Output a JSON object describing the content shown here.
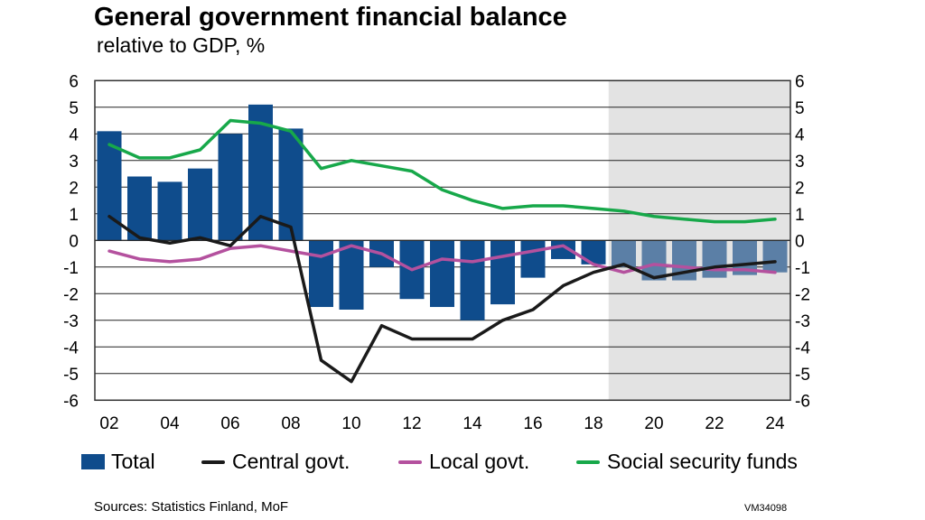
{
  "chart_data": {
    "type": "bar+line",
    "title": "General government financial balance",
    "subtitle": "relative to GDP, %",
    "years": [
      2002,
      2003,
      2004,
      2005,
      2006,
      2007,
      2008,
      2009,
      2010,
      2011,
      2012,
      2013,
      2014,
      2015,
      2016,
      2017,
      2018,
      2019,
      2020,
      2021,
      2022,
      2023,
      2024
    ],
    "x_tick_labels": [
      "02",
      "04",
      "06",
      "08",
      "10",
      "12",
      "14",
      "16",
      "18",
      "20",
      "22",
      "24"
    ],
    "y_ticks": [
      6,
      5,
      4,
      3,
      2,
      1,
      0,
      -1,
      -2,
      -3,
      -4,
      -5,
      -6
    ],
    "ylim": [
      -6,
      6
    ],
    "grid": true,
    "forecast_from": 2019,
    "series": [
      {
        "name": "Total",
        "kind": "bar",
        "color": "#0f4c8c",
        "forecast_color": "#5b7fa6",
        "values": [
          4.1,
          2.4,
          2.2,
          2.7,
          4.0,
          5.1,
          4.2,
          -2.5,
          -2.6,
          -1.0,
          -2.2,
          -2.5,
          -3.0,
          -2.4,
          -1.4,
          -0.7,
          -0.9,
          -1.0,
          -1.5,
          -1.5,
          -1.4,
          -1.3,
          -1.2
        ]
      },
      {
        "name": "Central govt.",
        "kind": "line",
        "color": "#1a1a1a",
        "values": [
          0.9,
          0.1,
          -0.1,
          0.1,
          -0.2,
          0.9,
          0.5,
          -4.5,
          -5.3,
          -3.2,
          -3.7,
          -3.7,
          -3.7,
          -3.0,
          -2.6,
          -1.7,
          -1.2,
          -0.9,
          -1.4,
          -1.2,
          -1.0,
          -0.9,
          -0.8
        ]
      },
      {
        "name": "Local govt.",
        "kind": "line",
        "color": "#b4519e",
        "values": [
          -0.4,
          -0.7,
          -0.8,
          -0.7,
          -0.3,
          -0.2,
          -0.4,
          -0.6,
          -0.2,
          -0.5,
          -1.1,
          -0.7,
          -0.8,
          -0.6,
          -0.4,
          -0.2,
          -0.9,
          -1.2,
          -0.9,
          -1.0,
          -1.1,
          -1.1,
          -1.2
        ]
      },
      {
        "name": "Social security funds",
        "kind": "line",
        "color": "#17a84a",
        "values": [
          3.6,
          3.1,
          3.1,
          3.4,
          4.5,
          4.4,
          4.1,
          2.7,
          3.0,
          2.8,
          2.6,
          1.9,
          1.5,
          1.2,
          1.3,
          1.3,
          1.2,
          1.1,
          0.9,
          0.8,
          0.7,
          0.7,
          0.8
        ]
      }
    ],
    "legend": {
      "placement": "bottom"
    }
  },
  "footer": {
    "source": "Sources: Statistics Finland, MoF",
    "code": "VM34098"
  }
}
